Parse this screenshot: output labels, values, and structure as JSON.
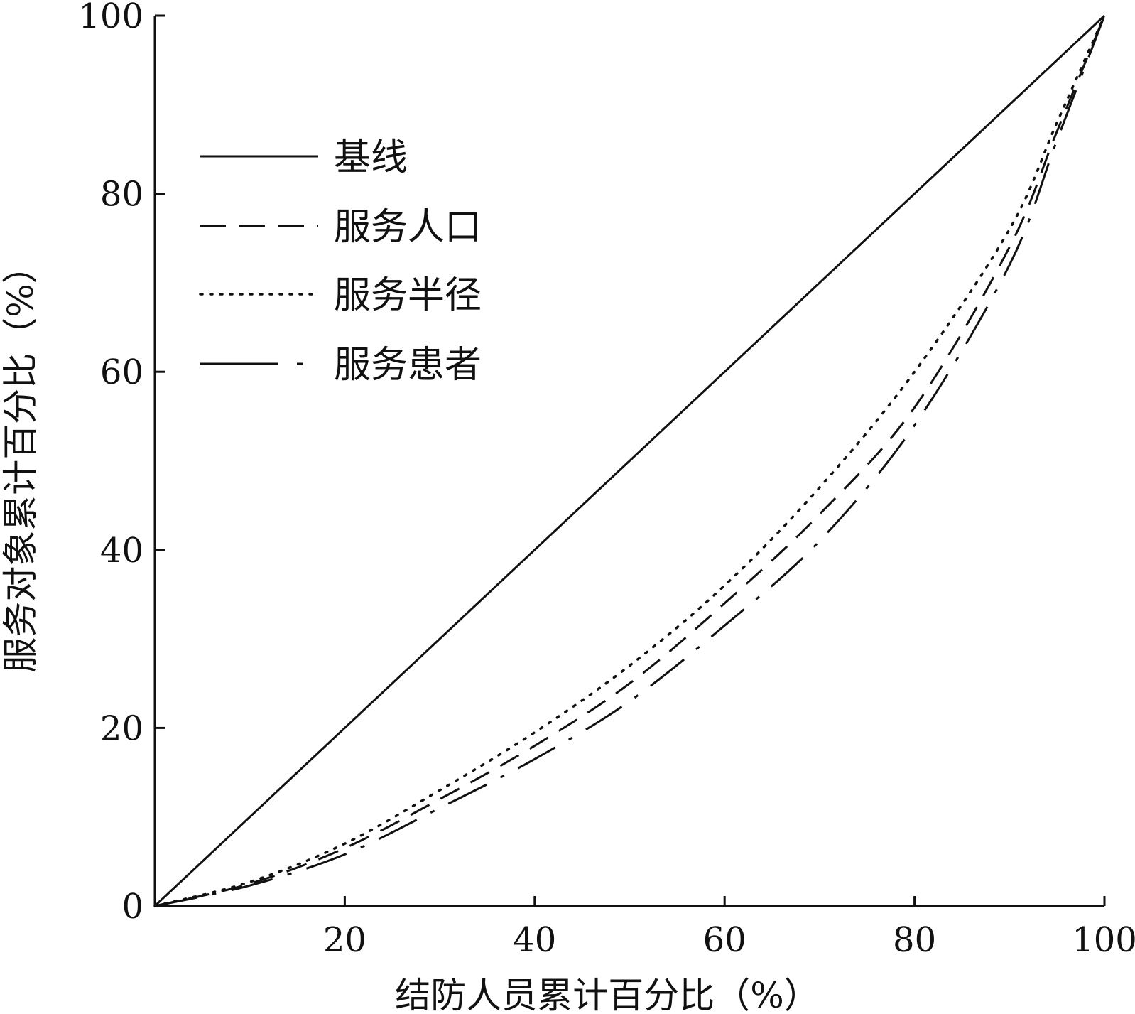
{
  "chart_data": {
    "type": "line",
    "title": "",
    "xlabel": "结防人员累计百分比（%）",
    "ylabel": "服务对象累计百分比（%）",
    "xlim": [
      0,
      100
    ],
    "ylim": [
      0,
      100
    ],
    "x_ticks": [
      {
        "value": 20,
        "label": "20"
      },
      {
        "value": 40,
        "label": "40"
      },
      {
        "value": 60,
        "label": "60"
      },
      {
        "value": 80,
        "label": "80"
      },
      {
        "value": 100,
        "label": "100"
      }
    ],
    "y_ticks": [
      {
        "value": 0,
        "label": "0"
      },
      {
        "value": 20,
        "label": "20"
      },
      {
        "value": 40,
        "label": "40"
      },
      {
        "value": 60,
        "label": "60"
      },
      {
        "value": 80,
        "label": "80"
      },
      {
        "value": 100,
        "label": "100"
      }
    ],
    "grid": false,
    "legend_position": "top-left",
    "series": [
      {
        "name": "基线",
        "style": "solid",
        "x": [
          0,
          100
        ],
        "y": [
          0,
          100
        ]
      },
      {
        "name": "服务人口",
        "style": "dashed",
        "x": [
          0,
          10,
          20,
          30,
          40,
          50,
          60,
          70,
          80,
          90,
          95,
          100
        ],
        "y": [
          0,
          2.5,
          6.5,
          12,
          18,
          25,
          34,
          44,
          56,
          74,
          87,
          100
        ]
      },
      {
        "name": "服务半径",
        "style": "dotted",
        "x": [
          0,
          10,
          20,
          30,
          40,
          50,
          60,
          70,
          80,
          90,
          95,
          100
        ],
        "y": [
          0,
          2.7,
          7,
          13,
          19.5,
          27,
          36,
          47,
          60,
          76,
          88,
          100
        ]
      },
      {
        "name": "服务患者",
        "style": "longdash-dot",
        "x": [
          0,
          10,
          20,
          30,
          40,
          50,
          60,
          70,
          80,
          90,
          95,
          100
        ],
        "y": [
          0,
          2.3,
          5.8,
          11,
          16.5,
          23,
          31.5,
          41,
          54,
          72,
          86,
          100
        ]
      }
    ]
  }
}
